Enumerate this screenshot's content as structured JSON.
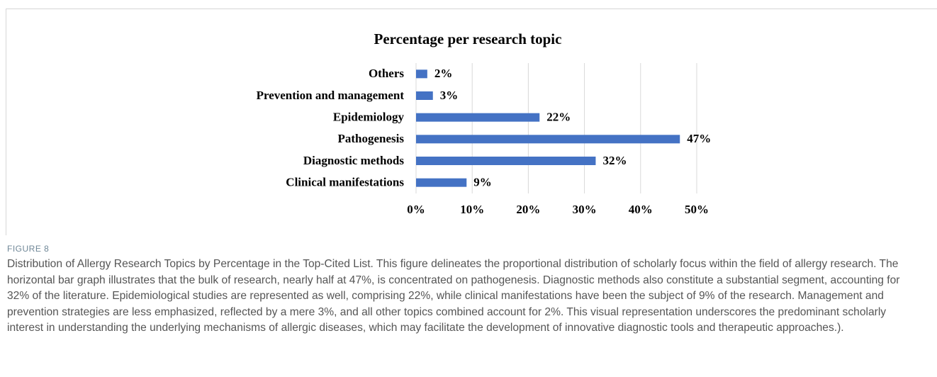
{
  "chart_data": {
    "type": "bar",
    "orientation": "horizontal",
    "title": "Percentage per research topic",
    "categories": [
      "Others",
      "Prevention and management",
      "Epidemiology",
      "Pathogenesis",
      "Diagnostic methods",
      "Clinical manifestations"
    ],
    "values": [
      2,
      3,
      22,
      47,
      32,
      9
    ],
    "value_labels": [
      "2%",
      "3%",
      "22%",
      "47%",
      "32%",
      "9%"
    ],
    "color": "#4472c4",
    "xlim": [
      0,
      50
    ],
    "xticks": [
      {
        "value": 0,
        "label": "0%"
      },
      {
        "value": 10,
        "label": "10%"
      },
      {
        "value": 20,
        "label": "20%"
      },
      {
        "value": 30,
        "label": "30%"
      },
      {
        "value": 40,
        "label": "40%"
      },
      {
        "value": 50,
        "label": "50%"
      }
    ],
    "grid": true
  },
  "figure": {
    "label": "FIGURE 8",
    "caption": "Distribution of Allergy Research Topics by Percentage in the Top-Cited List. This figure delineates the proportional distribution of scholarly focus within the field of allergy research. The horizontal bar graph illustrates that the bulk of research, nearly half at 47%, is concentrated on pathogenesis. Diagnostic methods also constitute a substantial segment, accounting for 32% of the literature. Epidemiological studies are represented as well, comprising 22%, while clinical manifestations have been the subject of 9% of the research. Management and prevention strategies are less emphasized, reflected by a mere 3%, and all other topics combined account for 2%. This visual representation underscores the predominant scholarly interest in understanding the underlying mechanisms of allergic diseases, which may facilitate the development of innovative diagnostic tools and therapeutic approaches.)."
  }
}
